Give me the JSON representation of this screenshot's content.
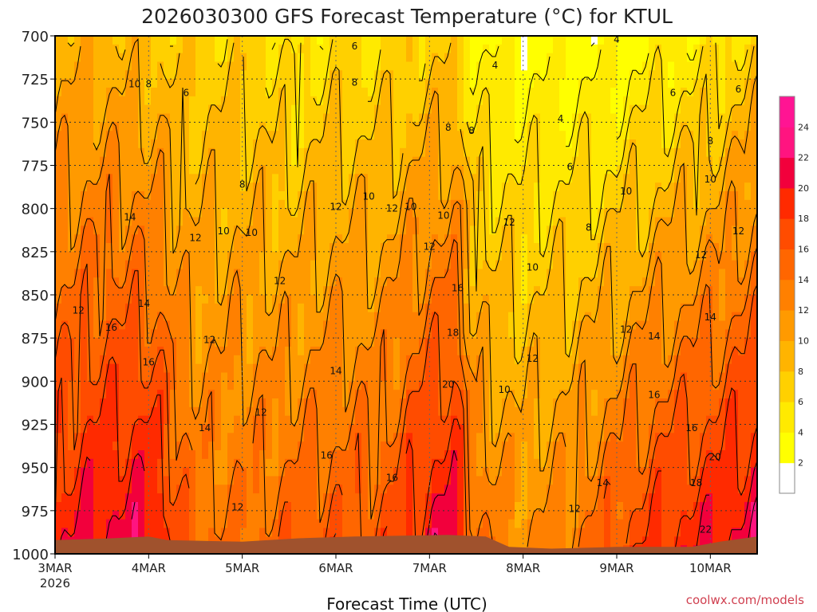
{
  "chart_data": {
    "type": "heatmap",
    "title": "2026030300  GFS Forecast Temperature (°C) for KTUL",
    "xlabel": "Forecast Time (UTC)",
    "credit": "coolwx.com/models",
    "y_label_values": [
      "700",
      "725",
      "750",
      "775",
      "800",
      "825",
      "850",
      "875",
      "900",
      "925",
      "950",
      "975",
      "1000"
    ],
    "ylim": [
      1000,
      700
    ],
    "xlim_days": [
      0,
      7.5
    ],
    "x_ticks": [
      {
        "day": 0,
        "label": "3MAR",
        "sub": "2026"
      },
      {
        "day": 1,
        "label": "4MAR",
        "sub": ""
      },
      {
        "day": 2,
        "label": "5MAR",
        "sub": ""
      },
      {
        "day": 3,
        "label": "6MAR",
        "sub": ""
      },
      {
        "day": 4,
        "label": "7MAR",
        "sub": ""
      },
      {
        "day": 5,
        "label": "8MAR",
        "sub": ""
      },
      {
        "day": 6,
        "label": "9MAR",
        "sub": ""
      },
      {
        "day": 7,
        "label": "10MAR",
        "sub": ""
      }
    ],
    "colorbar": {
      "levels": [
        0,
        2,
        4,
        6,
        8,
        10,
        12,
        14,
        16,
        18,
        20,
        22,
        24,
        26
      ],
      "labels": [
        "2",
        "4",
        "6",
        "8",
        "10",
        "12",
        "14",
        "16",
        "18",
        "20",
        "22",
        "24"
      ],
      "colors": [
        "#ffffff",
        "#ffff00",
        "#ffea00",
        "#ffd000",
        "#ffb400",
        "#ff9a00",
        "#ff8000",
        "#ff6600",
        "#ff4c00",
        "#ff2a00",
        "#f2003c",
        "#ff1480",
        "#ff1493"
      ]
    },
    "temperature_profile": {
      "times_day": [
        0,
        0.5,
        1.0,
        1.5,
        2.0,
        2.5,
        3.0,
        3.5,
        4.0,
        4.25,
        4.5,
        5.0,
        5.5,
        6.0,
        6.5,
        7.0,
        7.5
      ],
      "base_at_700": [
        9,
        9,
        8,
        7,
        7,
        5,
        6,
        6,
        7,
        7,
        4,
        3,
        3,
        3,
        4,
        5,
        7
      ],
      "lapse_c_per_hpa": [
        0.035,
        0.04,
        0.045,
        0.025,
        0.025,
        0.035,
        0.035,
        0.035,
        0.045,
        0.05,
        0.035,
        0.03,
        0.035,
        0.045,
        0.05,
        0.05,
        0.05
      ]
    },
    "contour_labels": [
      {
        "day": 0.85,
        "hpa": 728,
        "text": "10"
      },
      {
        "day": 1.0,
        "hpa": 728,
        "text": "8"
      },
      {
        "day": 1.4,
        "hpa": 733,
        "text": "6"
      },
      {
        "day": 3.2,
        "hpa": 706,
        "text": "6"
      },
      {
        "day": 4.7,
        "hpa": 717,
        "text": "4"
      },
      {
        "day": 5.4,
        "hpa": 748,
        "text": "4"
      },
      {
        "day": 6.0,
        "hpa": 702,
        "text": "4"
      },
      {
        "day": 6.6,
        "hpa": 733,
        "text": "6"
      },
      {
        "day": 3.2,
        "hpa": 727,
        "text": "8"
      },
      {
        "day": 4.45,
        "hpa": 755,
        "text": "8"
      },
      {
        "day": 4.2,
        "hpa": 753,
        "text": "8"
      },
      {
        "day": 2.0,
        "hpa": 786,
        "text": "8"
      },
      {
        "day": 5.5,
        "hpa": 776,
        "text": "6"
      },
      {
        "day": 5.7,
        "hpa": 811,
        "text": "8"
      },
      {
        "day": 7.0,
        "hpa": 761,
        "text": "8"
      },
      {
        "day": 7.3,
        "hpa": 731,
        "text": "6"
      },
      {
        "day": 0.8,
        "hpa": 805,
        "text": "14"
      },
      {
        "day": 1.5,
        "hpa": 817,
        "text": "12"
      },
      {
        "day": 1.8,
        "hpa": 813,
        "text": "10"
      },
      {
        "day": 2.1,
        "hpa": 814,
        "text": "10"
      },
      {
        "day": 3.0,
        "hpa": 799,
        "text": "12"
      },
      {
        "day": 3.35,
        "hpa": 793,
        "text": "10"
      },
      {
        "day": 3.8,
        "hpa": 799,
        "text": "10"
      },
      {
        "day": 3.6,
        "hpa": 800,
        "text": "12"
      },
      {
        "day": 4.15,
        "hpa": 804,
        "text": "10"
      },
      {
        "day": 4.85,
        "hpa": 808,
        "text": "12"
      },
      {
        "day": 4.0,
        "hpa": 822,
        "text": "12"
      },
      {
        "day": 5.1,
        "hpa": 834,
        "text": "10"
      },
      {
        "day": 6.1,
        "hpa": 790,
        "text": "10"
      },
      {
        "day": 7.0,
        "hpa": 783,
        "text": "10"
      },
      {
        "day": 7.3,
        "hpa": 813,
        "text": "12"
      },
      {
        "day": 6.9,
        "hpa": 827,
        "text": "12"
      },
      {
        "day": 2.4,
        "hpa": 842,
        "text": "12"
      },
      {
        "day": 0.25,
        "hpa": 859,
        "text": "12"
      },
      {
        "day": 0.6,
        "hpa": 869,
        "text": "16"
      },
      {
        "day": 0.95,
        "hpa": 855,
        "text": "14"
      },
      {
        "day": 1.65,
        "hpa": 876,
        "text": "12"
      },
      {
        "day": 1.0,
        "hpa": 889,
        "text": "16"
      },
      {
        "day": 4.3,
        "hpa": 846,
        "text": "16"
      },
      {
        "day": 4.25,
        "hpa": 872,
        "text": "18"
      },
      {
        "day": 4.2,
        "hpa": 902,
        "text": "20"
      },
      {
        "day": 5.1,
        "hpa": 887,
        "text": "12"
      },
      {
        "day": 4.8,
        "hpa": 905,
        "text": "10"
      },
      {
        "day": 6.1,
        "hpa": 870,
        "text": "12"
      },
      {
        "day": 6.4,
        "hpa": 874,
        "text": "14"
      },
      {
        "day": 7.0,
        "hpa": 863,
        "text": "14"
      },
      {
        "day": 3.0,
        "hpa": 894,
        "text": "14"
      },
      {
        "day": 2.2,
        "hpa": 918,
        "text": "12"
      },
      {
        "day": 1.6,
        "hpa": 927,
        "text": "14"
      },
      {
        "day": 2.9,
        "hpa": 943,
        "text": "16"
      },
      {
        "day": 3.6,
        "hpa": 956,
        "text": "16"
      },
      {
        "day": 6.4,
        "hpa": 908,
        "text": "16"
      },
      {
        "day": 6.8,
        "hpa": 927,
        "text": "16"
      },
      {
        "day": 7.05,
        "hpa": 944,
        "text": "20"
      },
      {
        "day": 6.85,
        "hpa": 959,
        "text": "18"
      },
      {
        "day": 5.85,
        "hpa": 959,
        "text": "14"
      },
      {
        "day": 5.55,
        "hpa": 974,
        "text": "12"
      },
      {
        "day": 1.95,
        "hpa": 973,
        "text": "12"
      },
      {
        "day": 6.95,
        "hpa": 986,
        "text": "22"
      }
    ]
  }
}
